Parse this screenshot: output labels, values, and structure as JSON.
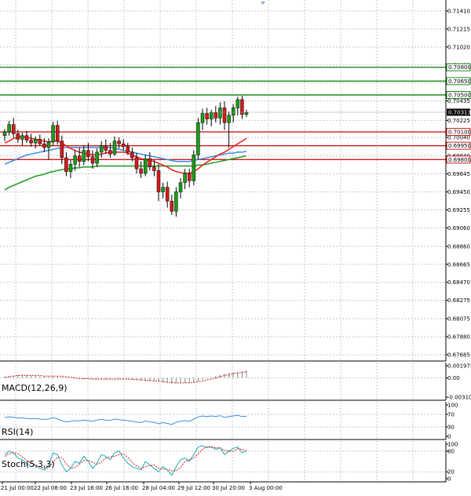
{
  "colors": {
    "background": "#ffffff",
    "grid": "#c8c8c8",
    "frame": "#000000",
    "bull": "#1a9e1a",
    "bear": "#d91a1a",
    "wick": "#000000",
    "ma_red": "#e8201a",
    "ma_blue": "#3a8de0",
    "ma_green": "#1e9a1e",
    "resistance": "#1e8a1e",
    "support": "#d01a1a",
    "price_badge": "#000000",
    "macd_signal": "#d01a1a",
    "rsi_line": "#3a8de0",
    "stoch_main": "#1aaeb8",
    "stoch_signal": "#d01a1a"
  },
  "chart_data": {
    "type": "candlestick",
    "timeframe_ticks": [
      "21 Jul 00:00",
      "22 Jul 08:00",
      "23 Jul 16:00",
      "26 Jul 16:00",
      "28 Jul 04:00",
      "29 Jul 12:00",
      "30 Jul 20:00",
      "3 Aug 00:00"
    ],
    "y_ticks": [
      "0.71410",
      "0.71215",
      "0.71020",
      "0.70825",
      "0.70630",
      "0.70435",
      "0.70225",
      "0.70040",
      "0.69840",
      "0.69645",
      "0.69450",
      "0.69255",
      "0.69060",
      "0.68860",
      "0.68665",
      "0.68470",
      "0.68275",
      "0.68075",
      "0.67880",
      "0.67685"
    ],
    "ylim": [
      0.67685,
      0.7141
    ],
    "current_price": "0.70313",
    "resistance_levels": [
      "0.70800",
      "0.70650",
      "0.70500"
    ],
    "support_levels": [
      "0.70100",
      "0.69950",
      "0.69800"
    ],
    "candles": [
      {
        "o": 0.7006,
        "h": 0.7013,
        "l": 0.7,
        "c": 0.701
      },
      {
        "o": 0.701,
        "h": 0.7022,
        "l": 0.7006,
        "c": 0.7018
      },
      {
        "o": 0.7018,
        "h": 0.7025,
        "l": 0.7004,
        "c": 0.7008
      },
      {
        "o": 0.7008,
        "h": 0.7012,
        "l": 0.6998,
        "c": 0.7002
      },
      {
        "o": 0.7002,
        "h": 0.7009,
        "l": 0.6995,
        "c": 0.7006
      },
      {
        "o": 0.7006,
        "h": 0.7011,
        "l": 0.6998,
        "c": 0.7001
      },
      {
        "o": 0.7001,
        "h": 0.7008,
        "l": 0.6994,
        "c": 0.6998
      },
      {
        "o": 0.6998,
        "h": 0.7005,
        "l": 0.6992,
        "c": 0.7002
      },
      {
        "o": 0.7002,
        "h": 0.7007,
        "l": 0.6995,
        "c": 0.6997
      },
      {
        "o": 0.6997,
        "h": 0.7003,
        "l": 0.6988,
        "c": 0.6993
      },
      {
        "o": 0.6993,
        "h": 0.7003,
        "l": 0.698,
        "c": 0.6999
      },
      {
        "o": 0.6999,
        "h": 0.7021,
        "l": 0.6995,
        "c": 0.7017
      },
      {
        "o": 0.7017,
        "h": 0.7022,
        "l": 0.6996,
        "c": 0.7
      },
      {
        "o": 0.7,
        "h": 0.7006,
        "l": 0.6975,
        "c": 0.6982
      },
      {
        "o": 0.6982,
        "h": 0.6988,
        "l": 0.6962,
        "c": 0.6967
      },
      {
        "o": 0.6967,
        "h": 0.698,
        "l": 0.696,
        "c": 0.6975
      },
      {
        "o": 0.6975,
        "h": 0.699,
        "l": 0.6968,
        "c": 0.6984
      },
      {
        "o": 0.6984,
        "h": 0.6993,
        "l": 0.6972,
        "c": 0.6978
      },
      {
        "o": 0.6978,
        "h": 0.6995,
        "l": 0.6974,
        "c": 0.699
      },
      {
        "o": 0.699,
        "h": 0.6998,
        "l": 0.6978,
        "c": 0.6983
      },
      {
        "o": 0.6983,
        "h": 0.699,
        "l": 0.697,
        "c": 0.6976
      },
      {
        "o": 0.6976,
        "h": 0.6992,
        "l": 0.6972,
        "c": 0.6988
      },
      {
        "o": 0.6988,
        "h": 0.7,
        "l": 0.6982,
        "c": 0.6995
      },
      {
        "o": 0.6995,
        "h": 0.7002,
        "l": 0.6986,
        "c": 0.699
      },
      {
        "o": 0.699,
        "h": 0.6998,
        "l": 0.6982,
        "c": 0.6986
      },
      {
        "o": 0.6986,
        "h": 0.7005,
        "l": 0.6984,
        "c": 0.7
      },
      {
        "o": 0.7,
        "h": 0.7004,
        "l": 0.6992,
        "c": 0.6997
      },
      {
        "o": 0.6997,
        "h": 0.7002,
        "l": 0.699,
        "c": 0.6994
      },
      {
        "o": 0.6994,
        "h": 0.6998,
        "l": 0.6985,
        "c": 0.6988
      },
      {
        "o": 0.6988,
        "h": 0.6993,
        "l": 0.6978,
        "c": 0.6982
      },
      {
        "o": 0.6982,
        "h": 0.6987,
        "l": 0.6965,
        "c": 0.697
      },
      {
        "o": 0.697,
        "h": 0.6978,
        "l": 0.696,
        "c": 0.6965
      },
      {
        "o": 0.6965,
        "h": 0.6985,
        "l": 0.6962,
        "c": 0.6981
      },
      {
        "o": 0.6981,
        "h": 0.6988,
        "l": 0.6968,
        "c": 0.6972
      },
      {
        "o": 0.6972,
        "h": 0.698,
        "l": 0.6962,
        "c": 0.6968
      },
      {
        "o": 0.6968,
        "h": 0.6975,
        "l": 0.6935,
        "c": 0.6945
      },
      {
        "o": 0.6945,
        "h": 0.6955,
        "l": 0.6938,
        "c": 0.695
      },
      {
        "o": 0.695,
        "h": 0.6956,
        "l": 0.6928,
        "c": 0.6935
      },
      {
        "o": 0.6935,
        "h": 0.6942,
        "l": 0.692,
        "c": 0.6924
      },
      {
        "o": 0.6924,
        "h": 0.695,
        "l": 0.6918,
        "c": 0.6945
      },
      {
        "o": 0.6945,
        "h": 0.696,
        "l": 0.6938,
        "c": 0.6955
      },
      {
        "o": 0.6955,
        "h": 0.697,
        "l": 0.6948,
        "c": 0.6965
      },
      {
        "o": 0.6965,
        "h": 0.697,
        "l": 0.695,
        "c": 0.6957
      },
      {
        "o": 0.6957,
        "h": 0.699,
        "l": 0.6952,
        "c": 0.6985
      },
      {
        "o": 0.6985,
        "h": 0.7025,
        "l": 0.698,
        "c": 0.702
      },
      {
        "o": 0.702,
        "h": 0.7035,
        "l": 0.7012,
        "c": 0.703
      },
      {
        "o": 0.703,
        "h": 0.7036,
        "l": 0.7018,
        "c": 0.7024
      },
      {
        "o": 0.7024,
        "h": 0.7034,
        "l": 0.7016,
        "c": 0.7031
      },
      {
        "o": 0.7031,
        "h": 0.7038,
        "l": 0.702,
        "c": 0.7025
      },
      {
        "o": 0.7025,
        "h": 0.7042,
        "l": 0.7018,
        "c": 0.7036
      },
      {
        "o": 0.7036,
        "h": 0.7043,
        "l": 0.7012,
        "c": 0.702
      },
      {
        "o": 0.702,
        "h": 0.7032,
        "l": 0.6993,
        "c": 0.7028
      },
      {
        "o": 0.7028,
        "h": 0.704,
        "l": 0.702,
        "c": 0.7036
      },
      {
        "o": 0.7036,
        "h": 0.7048,
        "l": 0.7028,
        "c": 0.7045
      },
      {
        "o": 0.7045,
        "h": 0.7049,
        "l": 0.7024,
        "c": 0.7029
      },
      {
        "o": 0.7029,
        "h": 0.7034,
        "l": 0.7026,
        "c": 0.7031
      }
    ],
    "ma_red": [
      0.6998,
      0.7,
      0.7003,
      0.7004,
      0.7005,
      0.7004,
      0.7003,
      0.7002,
      0.7001,
      0.7,
      0.6999,
      0.7,
      0.7,
      0.6998,
      0.6995,
      0.6992,
      0.699,
      0.6988,
      0.6987,
      0.6986,
      0.6985,
      0.6985,
      0.6986,
      0.6987,
      0.6988,
      0.6988,
      0.6988,
      0.6988,
      0.6987,
      0.6985,
      0.6983,
      0.6981,
      0.698,
      0.6979,
      0.6978,
      0.6976,
      0.6974,
      0.6972,
      0.6969,
      0.6967,
      0.6966,
      0.6965,
      0.6965,
      0.6967,
      0.697,
      0.6974,
      0.6977,
      0.698,
      0.6983,
      0.6986,
      0.6988,
      0.6991,
      0.6994,
      0.6997,
      0.7,
      0.7003
    ],
    "ma_blue": [
      0.6975,
      0.6977,
      0.6979,
      0.6981,
      0.6983,
      0.6985,
      0.6986,
      0.6987,
      0.6988,
      0.6989,
      0.699,
      0.6991,
      0.6992,
      0.6993,
      0.6993,
      0.6993,
      0.6993,
      0.6993,
      0.6993,
      0.6993,
      0.6993,
      0.6993,
      0.6993,
      0.6993,
      0.6993,
      0.6992,
      0.6991,
      0.699,
      0.6989,
      0.6988,
      0.6987,
      0.6986,
      0.6985,
      0.6984,
      0.6983,
      0.6982,
      0.6981,
      0.698,
      0.6979,
      0.6978,
      0.6978,
      0.6978,
      0.6978,
      0.6979,
      0.698,
      0.6981,
      0.6982,
      0.6983,
      0.6984,
      0.6985,
      0.6986,
      0.6987,
      0.6987,
      0.6988,
      0.6988,
      0.6989
    ],
    "ma_green": [
      0.6947,
      0.695,
      0.6952,
      0.6954,
      0.6956,
      0.6958,
      0.696,
      0.6962,
      0.6963,
      0.6964,
      0.6966,
      0.6967,
      0.6968,
      0.6969,
      0.697,
      0.697,
      0.6971,
      0.6971,
      0.6972,
      0.6972,
      0.6972,
      0.6973,
      0.6973,
      0.6973,
      0.6973,
      0.6973,
      0.6973,
      0.6973,
      0.6973,
      0.6973,
      0.6973,
      0.6973,
      0.6973,
      0.6973,
      0.6973,
      0.6973,
      0.6973,
      0.6973,
      0.6973,
      0.6973,
      0.6973,
      0.6973,
      0.6973,
      0.6973,
      0.6974,
      0.6974,
      0.6975,
      0.6976,
      0.6977,
      0.6978,
      0.6979,
      0.698,
      0.6981,
      0.6982,
      0.6983,
      0.6984
    ],
    "macd": {
      "label": "MACD(12,26,9)",
      "ticks": [
        "0.001975",
        "0.00",
        "-0.003101"
      ],
      "ylim": [
        -0.003101,
        0.001975
      ],
      "histogram": [
        0.0002,
        0.0003,
        0.0004,
        0.0005,
        0.0005,
        0.0005,
        0.0004,
        0.0004,
        0.0003,
        0.0003,
        0.0002,
        0.0003,
        0.0003,
        0.0002,
        0.0001,
        0.0,
        -0.0001,
        -0.0001,
        -0.0002,
        -0.0002,
        -0.0002,
        -0.0002,
        -0.0002,
        -0.0002,
        -0.0002,
        -0.0002,
        -0.0002,
        -0.0002,
        -0.0002,
        -0.0003,
        -0.0003,
        -0.0004,
        -0.0004,
        -0.0005,
        -0.0005,
        -0.0006,
        -0.0007,
        -0.0008,
        -0.0009,
        -0.0009,
        -0.0009,
        -0.0008,
        -0.0008,
        -0.0007,
        -0.0005,
        -0.0003,
        -0.0001,
        0.0001,
        0.0003,
        0.0005,
        0.0007,
        0.0008,
        0.0009,
        0.001,
        0.0011,
        0.0012
      ],
      "signal": [
        0.0001,
        0.0002,
        0.0003,
        0.0004,
        0.0004,
        0.0004,
        0.0004,
        0.0004,
        0.0004,
        0.0003,
        0.0003,
        0.0003,
        0.0003,
        0.0003,
        0.0002,
        0.0001,
        0.0,
        -0.0001,
        -0.0001,
        -0.0001,
        -0.0002,
        -0.0002,
        -0.0002,
        -0.0002,
        -0.0002,
        -0.0002,
        -0.0002,
        -0.0002,
        -0.0002,
        -0.0002,
        -0.0003,
        -0.0003,
        -0.0004,
        -0.0004,
        -0.0005,
        -0.0005,
        -0.0006,
        -0.0007,
        -0.0007,
        -0.0008,
        -0.0008,
        -0.0008,
        -0.0008,
        -0.0007,
        -0.0006,
        -0.0005,
        -0.0003,
        -0.0002,
        0.0,
        0.0002,
        0.0004,
        0.0005,
        0.0007,
        0.0008,
        0.0009,
        0.001
      ]
    },
    "rsi": {
      "label": "RSI(14)",
      "ticks": [
        "100",
        "70",
        "30",
        "0"
      ],
      "ylim": [
        0,
        100
      ],
      "values": [
        60,
        62,
        61,
        58,
        59,
        57,
        56,
        57,
        55,
        54,
        55,
        60,
        56,
        50,
        46,
        48,
        50,
        49,
        52,
        50,
        48,
        52,
        54,
        52,
        51,
        55,
        53,
        52,
        50,
        48,
        45,
        44,
        49,
        46,
        45,
        40,
        44,
        41,
        38,
        45,
        48,
        50,
        48,
        55,
        62,
        65,
        63,
        65,
        63,
        66,
        60,
        63,
        65,
        67,
        63,
        64
      ]
    },
    "stoch": {
      "label": "Stoch(5,3,3)",
      "ticks": [
        "100",
        "80",
        "20",
        "0"
      ],
      "ylim": [
        0,
        100
      ],
      "main": [
        70,
        80,
        75,
        60,
        55,
        45,
        35,
        40,
        30,
        25,
        40,
        75,
        70,
        40,
        20,
        30,
        50,
        45,
        65,
        50,
        30,
        45,
        70,
        65,
        55,
        75,
        80,
        60,
        45,
        35,
        30,
        25,
        50,
        40,
        30,
        20,
        35,
        25,
        10,
        35,
        55,
        60,
        50,
        70,
        92,
        96,
        90,
        92,
        85,
        90,
        70,
        80,
        88,
        92,
        75,
        80
      ],
      "signal": [
        65,
        72,
        76,
        72,
        63,
        53,
        45,
        40,
        35,
        30,
        32,
        48,
        62,
        62,
        43,
        30,
        33,
        42,
        53,
        53,
        48,
        42,
        48,
        60,
        63,
        65,
        70,
        72,
        62,
        47,
        37,
        30,
        35,
        38,
        40,
        30,
        28,
        27,
        23,
        23,
        33,
        50,
        55,
        60,
        71,
        86,
        93,
        93,
        89,
        89,
        82,
        80,
        79,
        87,
        85,
        82
      ]
    }
  }
}
